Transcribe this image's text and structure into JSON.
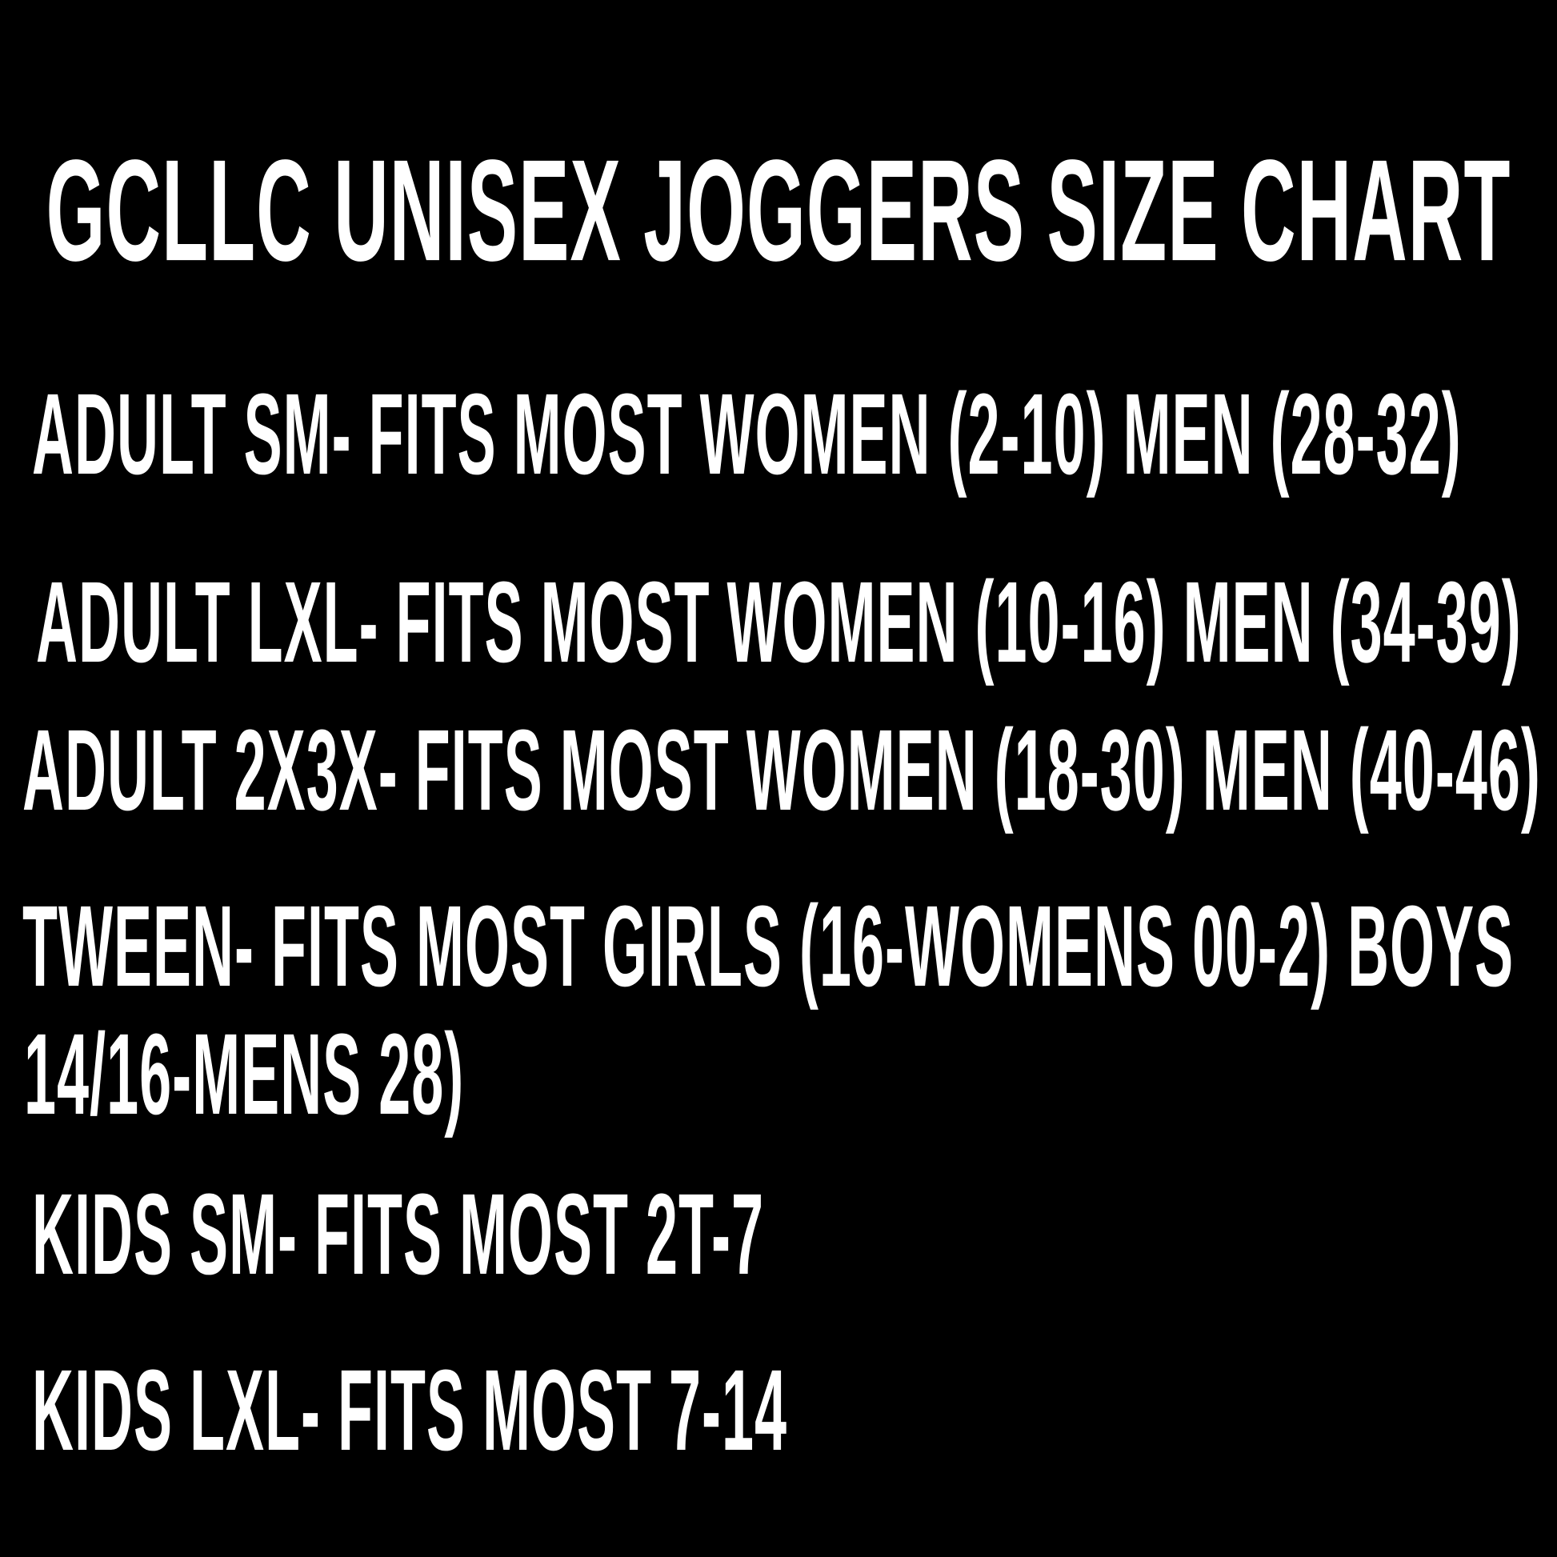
{
  "theme": {
    "background_color": "#000000",
    "text_color": "#ffffff"
  },
  "title": "GCLLC UNISEX JOGGERS SIZE CHART",
  "lines": [
    "ADULT SM- FITS MOST WOMEN (2-10) MEN (28-32)",
    "ADULT LXL- FITS MOST WOMEN (10-16) MEN (34-39)",
    "ADULT 2X3X- FITS MOST WOMEN (18-30) MEN (40-46)",
    "TWEEN- FITS MOST GIRLS (16-WOMENS 00-2) BOYS",
    "14/16-MENS 28)",
    "KIDS SM- FITS MOST 2T-7",
    "KIDS LXL- FITS MOST 7-14"
  ]
}
